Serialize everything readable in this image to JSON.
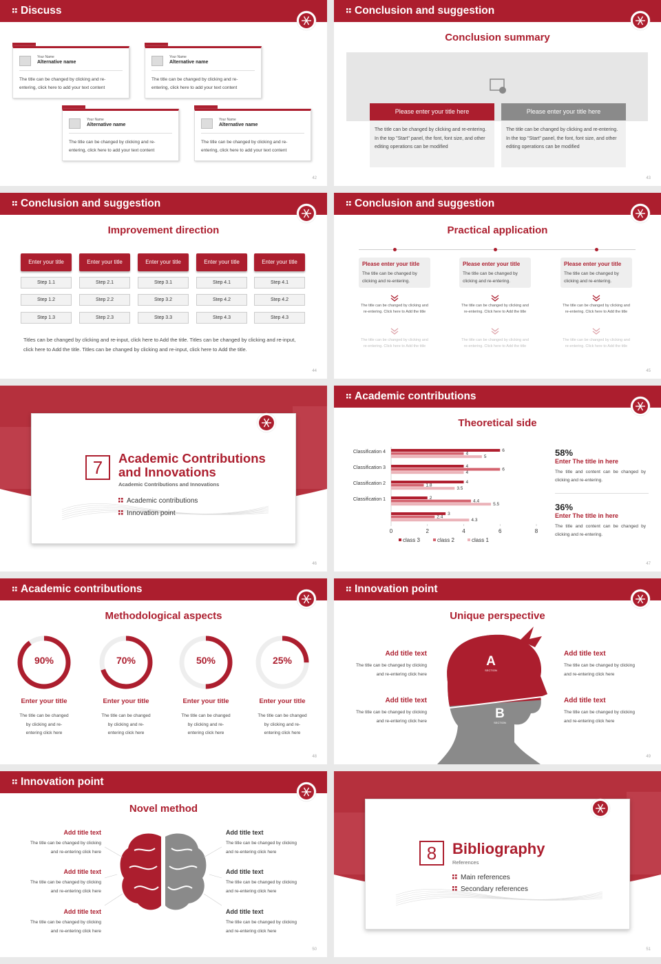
{
  "slides": [
    {
      "number": "42",
      "header": "Discuss",
      "cards": [
        {
          "name_label": "Your Name",
          "name": "Alternative name",
          "text": "The title can be changed by clicking and re-entering, click here to add your text content"
        },
        {
          "name_label": "Your Name",
          "name": "Alternative name",
          "text": "The title can be changed by clicking and re-entering, click here to add your text content"
        },
        {
          "name_label": "Your Name",
          "name": "Alternative name",
          "text": "The title can be changed by clicking and re-entering, click here to add your text content"
        },
        {
          "name_label": "Your Name",
          "name": "Alternative name",
          "text": "The title can be changed by clicking and re-entering, click here to add your text content"
        }
      ]
    },
    {
      "number": "43",
      "header": "Conclusion and suggestion",
      "title": "Conclusion summary",
      "panels": [
        {
          "title": "Please enter your title here",
          "text": "The title can be changed by clicking and re-entering. In the top \"Start\" panel, the font, font size, and other editing operations can be modified"
        },
        {
          "title": "Please enter your title here",
          "text": "The title can be changed by clicking and re-entering. In the top \"Start\" panel, the font, font size, and other editing operations can be modified"
        }
      ]
    },
    {
      "number": "44",
      "header": "Conclusion and suggestion",
      "title": "Improvement direction",
      "columns": [
        {
          "title": "Enter your title",
          "steps": [
            "Step 1.1",
            "Step 1.2",
            "Step 1.3"
          ]
        },
        {
          "title": "Enter your title",
          "steps": [
            "Step 2.1",
            "Step 2.2",
            "Step 2.3"
          ]
        },
        {
          "title": "Enter your title",
          "steps": [
            "Step 3.1",
            "Step 3.2",
            "Step 3.3"
          ]
        },
        {
          "title": "Enter your title",
          "steps": [
            "Step 4.1",
            "Step 4.2",
            "Step 4.3"
          ]
        },
        {
          "title": "Enter your title",
          "steps": [
            "Step 4.1",
            "Step 4.2",
            "Step 4.3"
          ]
        }
      ],
      "note": "Titles can be changed by clicking and re-input, click here to Add the title. Titles can be changed by clicking and re-input, click here to Add the title. Titles can be changed by clicking and re-input, click here to Add the title."
    },
    {
      "number": "45",
      "header": "Conclusion and suggestion",
      "title": "Practical application",
      "items": [
        {
          "title": "Please enter your title",
          "text": "The title can be changed by clicking and re-entering.",
          "details": [
            "The title can be changed by clicking and re-entering. Click here to Add the title",
            "The title can be changed by clicking and re-entering. Click here to Add the title"
          ]
        },
        {
          "title": "Please enter your title",
          "text": "The title can be changed by clicking and re-entering.",
          "details": [
            "The title can be changed by clicking and re-entering. Click here to Add the title",
            "The title can be changed by clicking and re-entering. Click here to Add the title"
          ]
        },
        {
          "title": "Please enter your title",
          "text": "The title can be changed by clicking and re-entering.",
          "details": [
            "The title can be changed by clicking and re-entering. Click here to Add the title",
            "The title can be changed by clicking and re-entering. Click here to Add the title"
          ]
        }
      ]
    },
    {
      "number": "46",
      "section_number": "7",
      "title": "Academic Contributions and Innovations",
      "subtitle": "Academic Contributions and Innovations",
      "items": [
        "Academic contributions",
        "Innovation point"
      ]
    },
    {
      "number": "47",
      "header": "Academic contributions",
      "title": "Theoretical side",
      "chart": {
        "type": "bar",
        "orientation": "horizontal",
        "categories": [
          "Classification 4",
          "Classification 3",
          "Classification 2",
          "Classification 1",
          null
        ],
        "series": [
          {
            "name": "class 3",
            "color": "#b01f2f",
            "values": [
              6,
              4,
              4,
              2,
              3
            ]
          },
          {
            "name": "class 2",
            "color": "#d4636f",
            "values": [
              4,
              6,
              1.8,
              4.4,
              2.4
            ]
          },
          {
            "name": "class 1",
            "color": "#ebb3b9",
            "values": [
              5,
              4,
              3.5,
              5.5,
              4.3
            ]
          }
        ],
        "xlim": [
          0,
          8
        ],
        "xticks": [
          0,
          2,
          4,
          6,
          8
        ]
      },
      "stats": [
        {
          "value": "58%",
          "title": "Enter The title in here",
          "text": "The title and content can be changed by clicking and re-entering."
        },
        {
          "value": "36%",
          "title": "Enter The title in here",
          "text": "The title and content can be changed by clicking and re-entering."
        }
      ]
    },
    {
      "number": "48",
      "header": "Academic contributions",
      "title": "Methodological aspects",
      "rings": [
        {
          "value": 90,
          "label": "90%",
          "title": "Enter your title",
          "text": "The title can be changed by clicking and re-entering click here"
        },
        {
          "value": 70,
          "label": "70%",
          "title": "Enter your title",
          "text": "The title can be changed by clicking and re-entering click here"
        },
        {
          "value": 50,
          "label": "50%",
          "title": "Enter your title",
          "text": "The title can be changed by clicking and re-entering click here"
        },
        {
          "value": 25,
          "label": "25%",
          "title": "Enter your title",
          "text": "The title can be changed by clicking and re-entering click here"
        }
      ]
    },
    {
      "number": "49",
      "header": "Innovation point",
      "title": "Unique perspective",
      "head_labels": [
        "A",
        "B"
      ],
      "section_label": "SECTION",
      "left": [
        {
          "title": "Add title text",
          "text": "The title can be changed by clicking and re-entering click here"
        },
        {
          "title": "Add title text",
          "text": "The title can be changed by clicking and re-entering click here"
        }
      ],
      "right": [
        {
          "title": "Add title text",
          "text": "The title can be changed by clicking and re-entering click here"
        },
        {
          "title": "Add title text",
          "text": "The title can be changed by clicking and re-entering click here"
        }
      ]
    },
    {
      "number": "50",
      "header": "Innovation point",
      "title": "Novel method",
      "left": [
        {
          "title": "Add title text",
          "text": "The title can be changed by clicking and re-entering click here"
        },
        {
          "title": "Add title text",
          "text": "The title can be changed by clicking and re-entering click here"
        },
        {
          "title": "Add title text",
          "text": "The title can be changed by clicking and re-entering click here"
        }
      ],
      "right": [
        {
          "title": "Add title text",
          "text": "The title can be changed by clicking and re-entering click here"
        },
        {
          "title": "Add title text",
          "text": "The title can be changed by clicking and re-entering click here"
        },
        {
          "title": "Add title text",
          "text": "The title can be changed by clicking and re-entering click here"
        }
      ]
    },
    {
      "number": "51",
      "section_number": "8",
      "title": "Bibliography",
      "subtitle": "References",
      "items": [
        "Main references",
        "Secondary references"
      ]
    }
  ]
}
